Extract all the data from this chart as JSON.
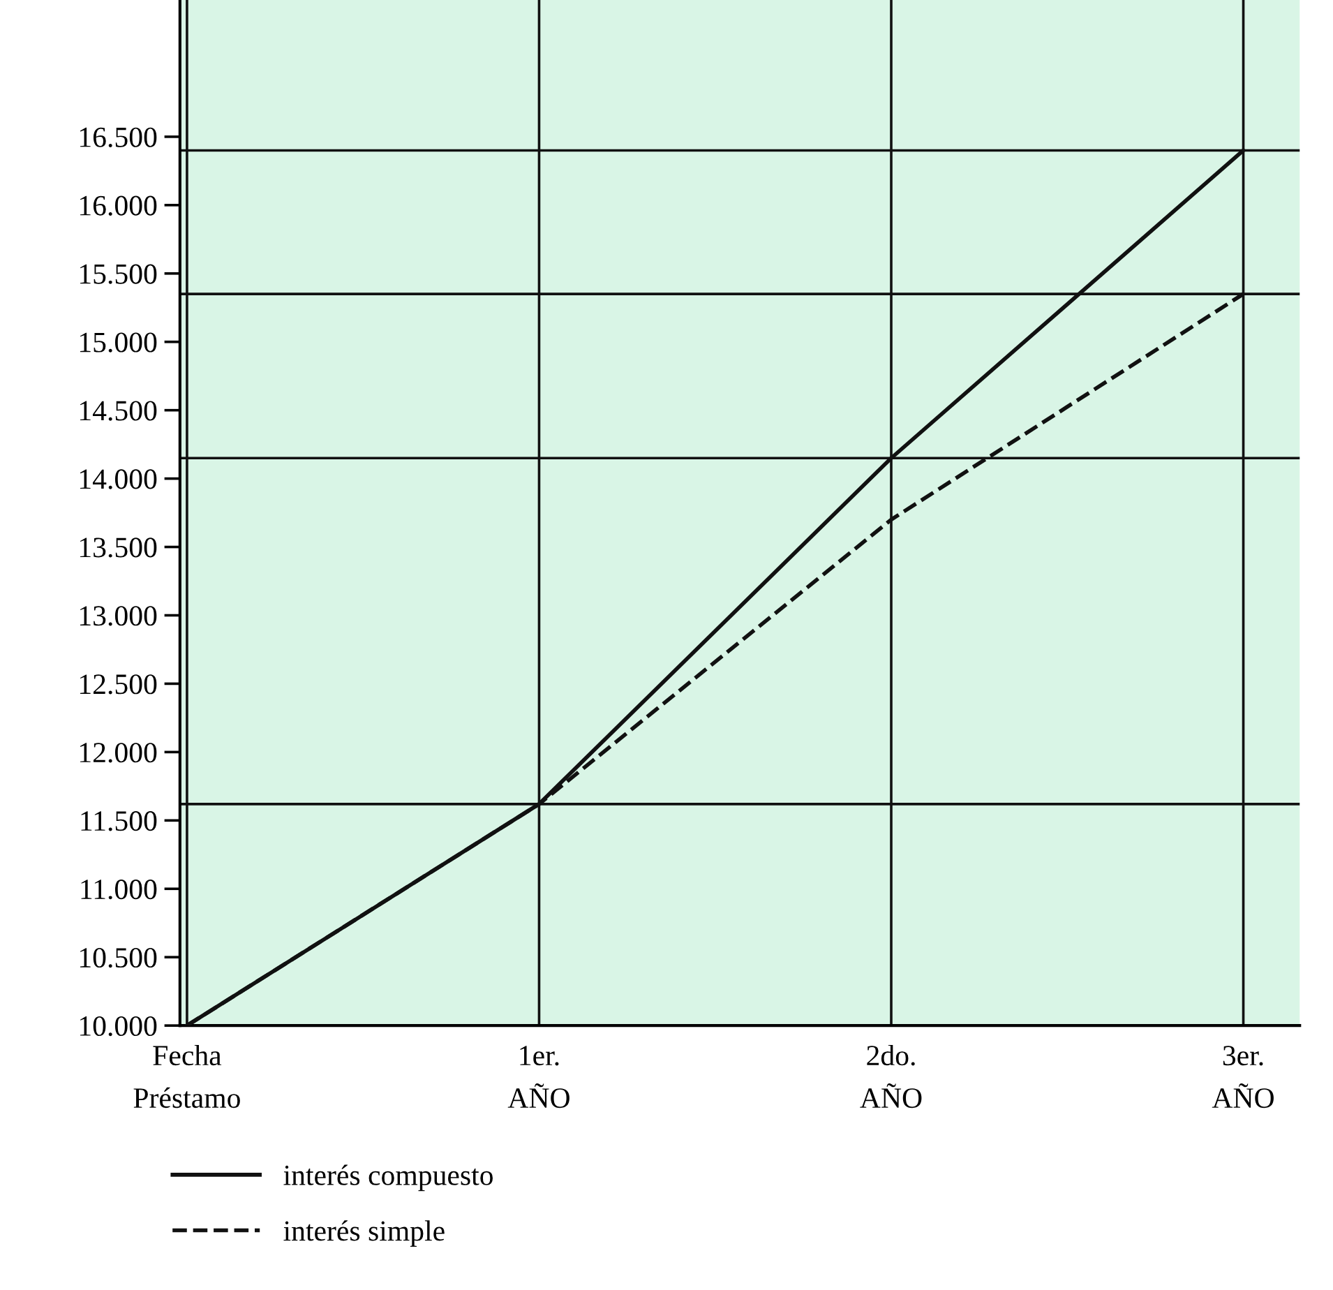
{
  "chart_data": {
    "type": "line",
    "categories": [
      "Fecha\nPréstamo",
      "1er.\nAÑO",
      "2do.\nAÑO",
      "3er.\nAÑO"
    ],
    "series": [
      {
        "name": "interés compuesto",
        "color": "#111111",
        "line_style": "solid",
        "values": [
          10000,
          11620,
          14150,
          16400
        ]
      },
      {
        "name": "interés simple",
        "color": "#111111",
        "line_style": "dashed",
        "values": [
          10000,
          11620,
          13700,
          15350
        ]
      }
    ],
    "ylim": [
      10000,
      17500
    ],
    "yticks": [
      {
        "value": 10000,
        "label": "10.000"
      },
      {
        "value": 10500,
        "label": "10.500"
      },
      {
        "value": 11000,
        "label": "11.000"
      },
      {
        "value": 11500,
        "label": "11.500"
      },
      {
        "value": 12000,
        "label": "12.000"
      },
      {
        "value": 12500,
        "label": "12.500"
      },
      {
        "value": 13000,
        "label": "13.000"
      },
      {
        "value": 13500,
        "label": "13.500"
      },
      {
        "value": 14000,
        "label": "14.000"
      },
      {
        "value": 14500,
        "label": "14.500"
      },
      {
        "value": 15000,
        "label": "15.000"
      },
      {
        "value": 15500,
        "label": "15.500"
      },
      {
        "value": 16000,
        "label": "16.000"
      },
      {
        "value": 16500,
        "label": "16.500"
      }
    ],
    "ref_lines": [
      {
        "axis": "y",
        "value": 11620,
        "color": "#111111"
      },
      {
        "axis": "y",
        "value": 14150,
        "color": "#111111"
      },
      {
        "axis": "y",
        "value": 15350,
        "color": "#111111"
      },
      {
        "axis": "y",
        "value": 16400,
        "color": "#111111"
      }
    ],
    "grid": "x",
    "legend": "bottom left",
    "marker": "none"
  }
}
